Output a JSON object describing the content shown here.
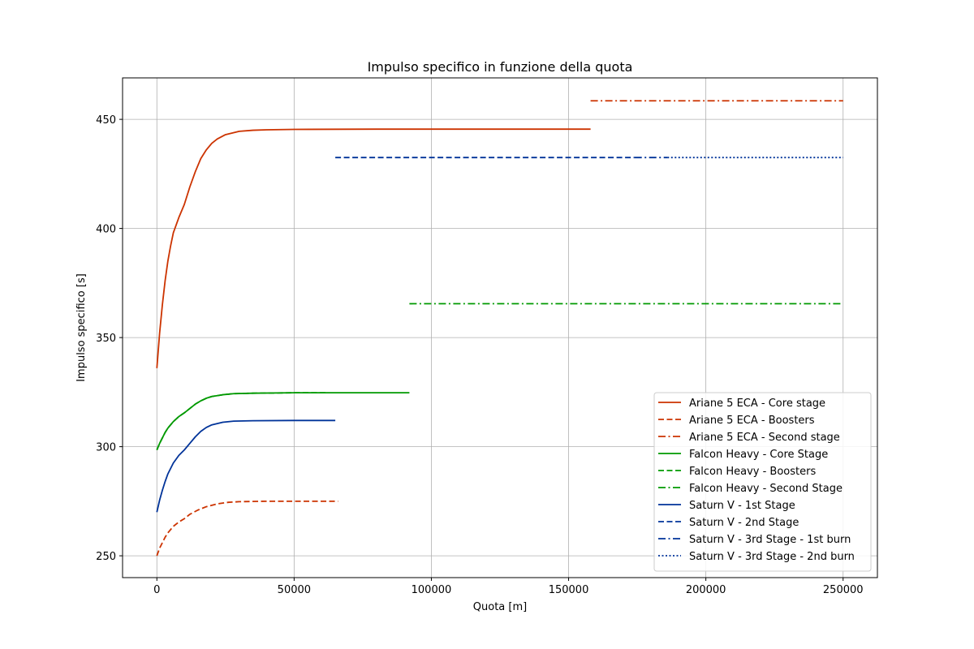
{
  "chart_data": {
    "type": "line",
    "title": "Impulso specifico in funzione della quota",
    "xlabel": "Quota [m]",
    "ylabel": "Impulso specifico [s]",
    "xlim": [
      -12500,
      262500
    ],
    "ylim": [
      240,
      469
    ],
    "x_ticks": [
      0,
      50000,
      100000,
      150000,
      200000,
      250000
    ],
    "y_ticks": [
      250,
      300,
      350,
      400,
      450
    ],
    "grid": true,
    "legend_position": "lower-right",
    "series": [
      {
        "name": "Ariane 5 ECA - Core stage",
        "color": "#cc3300",
        "dash": "solid",
        "points": [
          [
            0,
            336
          ],
          [
            1000,
            352
          ],
          [
            2000,
            365
          ],
          [
            3000,
            376
          ],
          [
            4000,
            385
          ],
          [
            5000,
            392
          ],
          [
            6000,
            398
          ],
          [
            8000,
            405
          ],
          [
            10000,
            411
          ],
          [
            12000,
            419
          ],
          [
            14000,
            426
          ],
          [
            16000,
            432
          ],
          [
            18000,
            436
          ],
          [
            20000,
            439
          ],
          [
            22000,
            441
          ],
          [
            25000,
            443
          ],
          [
            30000,
            444.5
          ],
          [
            35000,
            445
          ],
          [
            40000,
            445.2
          ],
          [
            50000,
            445.4
          ],
          [
            80000,
            445.5
          ],
          [
            120000,
            445.5
          ],
          [
            158000,
            445.5
          ]
        ]
      },
      {
        "name": "Ariane 5 ECA - Boosters",
        "color": "#cc3300",
        "dash": "dashed",
        "points": [
          [
            0,
            250
          ],
          [
            1000,
            253.5
          ],
          [
            2000,
            256
          ],
          [
            3000,
            258.5
          ],
          [
            4000,
            260.5
          ],
          [
            6000,
            263.5
          ],
          [
            8000,
            265.5
          ],
          [
            10000,
            267
          ],
          [
            12000,
            269
          ],
          [
            15000,
            271
          ],
          [
            18000,
            272.5
          ],
          [
            22000,
            273.8
          ],
          [
            26000,
            274.5
          ],
          [
            30000,
            274.8
          ],
          [
            40000,
            275
          ],
          [
            50000,
            275
          ],
          [
            66000,
            275
          ]
        ]
      },
      {
        "name": "Ariane 5 ECA - Second stage",
        "color": "#cc3300",
        "dash": "dashdot",
        "points": [
          [
            158000,
            458.5
          ],
          [
            250000,
            458.5
          ]
        ]
      },
      {
        "name": "Falcon Heavy - Core Stage",
        "color": "#009900",
        "dash": "solid",
        "points": [
          [
            0,
            298.5
          ],
          [
            1000,
            301.5
          ],
          [
            2000,
            304
          ],
          [
            3000,
            306.5
          ],
          [
            4000,
            308.5
          ],
          [
            6000,
            311.5
          ],
          [
            8000,
            313.8
          ],
          [
            10000,
            315.5
          ],
          [
            12000,
            317.5
          ],
          [
            14000,
            319.5
          ],
          [
            16000,
            321
          ],
          [
            18000,
            322.2
          ],
          [
            20000,
            323
          ],
          [
            24000,
            323.8
          ],
          [
            28000,
            324.3
          ],
          [
            35000,
            324.5
          ],
          [
            50000,
            324.7
          ],
          [
            70000,
            324.7
          ],
          [
            92000,
            324.7
          ]
        ]
      },
      {
        "name": "Falcon Heavy - Boosters",
        "color": "#009900",
        "dash": "dashed",
        "points": [
          [
            0,
            298.5
          ],
          [
            1000,
            301.5
          ],
          [
            2000,
            304
          ],
          [
            3000,
            306.5
          ],
          [
            4000,
            308.5
          ],
          [
            6000,
            311.5
          ],
          [
            8000,
            313.8
          ],
          [
            10000,
            315.5
          ],
          [
            12000,
            317.5
          ],
          [
            14000,
            319.5
          ],
          [
            16000,
            321
          ],
          [
            18000,
            322.2
          ],
          [
            20000,
            323
          ],
          [
            24000,
            323.8
          ],
          [
            28000,
            324.3
          ],
          [
            35000,
            324.5
          ],
          [
            50000,
            324.7
          ],
          [
            62000,
            324.7
          ]
        ]
      },
      {
        "name": "Falcon Heavy - Second Stage",
        "color": "#009900",
        "dash": "dashdot",
        "points": [
          [
            92000,
            365.5
          ],
          [
            250000,
            365.5
          ]
        ]
      },
      {
        "name": "Saturn V - 1st Stage",
        "color": "#003399",
        "dash": "solid",
        "points": [
          [
            0,
            270
          ],
          [
            1000,
            275.5
          ],
          [
            2000,
            280
          ],
          [
            3000,
            284
          ],
          [
            4000,
            287.5
          ],
          [
            6000,
            292.5
          ],
          [
            8000,
            296
          ],
          [
            10000,
            298.5
          ],
          [
            12000,
            301.5
          ],
          [
            14000,
            304.5
          ],
          [
            16000,
            307
          ],
          [
            18000,
            308.8
          ],
          [
            20000,
            310
          ],
          [
            24000,
            311.2
          ],
          [
            28000,
            311.7
          ],
          [
            35000,
            311.9
          ],
          [
            50000,
            312
          ],
          [
            65000,
            312
          ]
        ]
      },
      {
        "name": "Saturn V - 2nd Stage",
        "color": "#003399",
        "dash": "dashed",
        "points": [
          [
            65000,
            432.5
          ],
          [
            174000,
            432.5
          ]
        ]
      },
      {
        "name": "Saturn V - 3rd Stage - 1st burn",
        "color": "#003399",
        "dash": "dashdot",
        "points": [
          [
            174000,
            432.5
          ],
          [
            186000,
            432.5
          ]
        ]
      },
      {
        "name": "Saturn V - 3rd Stage - 2nd burn",
        "color": "#003399",
        "dash": "dotted",
        "points": [
          [
            186000,
            432.5
          ],
          [
            250000,
            432.5
          ]
        ]
      }
    ]
  }
}
